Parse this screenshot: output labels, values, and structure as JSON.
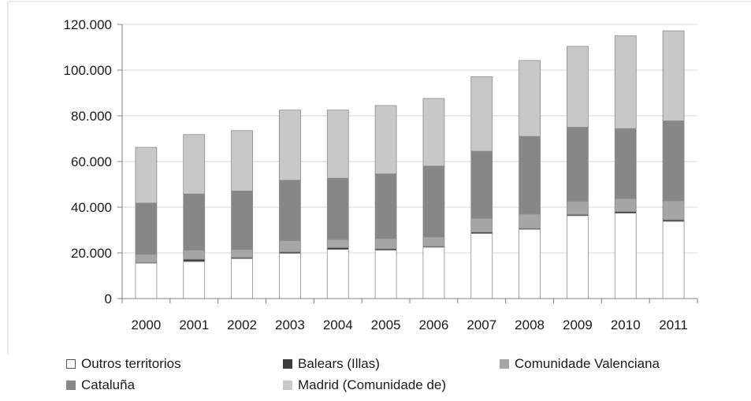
{
  "chart_data": {
    "type": "bar",
    "stacked": true,
    "categories": [
      "2000",
      "2001",
      "2002",
      "2003",
      "2004",
      "2005",
      "2006",
      "2007",
      "2008",
      "2009",
      "2010",
      "2011"
    ],
    "series": [
      {
        "name": "Outros territorios",
        "color": "#ffffff",
        "values": [
          15500,
          16200,
          17500,
          19800,
          21500,
          21200,
          22500,
          28500,
          30300,
          36300,
          37400,
          33800
        ]
      },
      {
        "name": "Balears (Illas)",
        "color": "#3c3c3c",
        "values": [
          300,
          1000,
          500,
          600,
          800,
          600,
          400,
          600,
          400,
          500,
          700,
          700
        ]
      },
      {
        "name": "Comunidade Valenciana",
        "color": "#a6a6a6",
        "values": [
          3600,
          4000,
          3500,
          5000,
          3600,
          4500,
          4100,
          6000,
          6300,
          5800,
          5700,
          8300
        ]
      },
      {
        "name": "Cataluña",
        "color": "#878787",
        "values": [
          22400,
          24600,
          25600,
          26400,
          26800,
          28300,
          31000,
          29400,
          34000,
          32400,
          30600,
          35000
        ]
      },
      {
        "name": "Madrid (Comunidade de)",
        "color": "#c8c8c8",
        "values": [
          24400,
          26000,
          26400,
          30700,
          29800,
          29900,
          29600,
          32600,
          33200,
          35400,
          40600,
          39400
        ]
      }
    ],
    "yticks": [
      "0",
      "20.000",
      "40.000",
      "60.000",
      "80.000",
      "100.000",
      "120.000"
    ],
    "ylim": [
      0,
      120000
    ],
    "grid": true,
    "legend_position": "bottom"
  }
}
